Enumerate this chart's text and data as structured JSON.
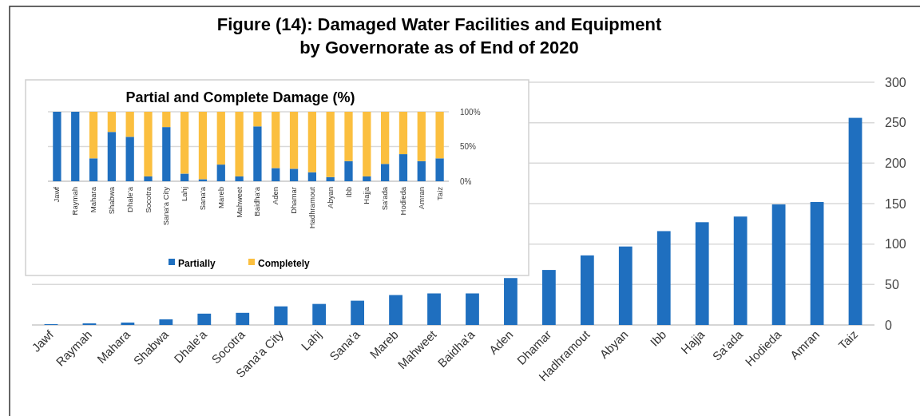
{
  "chart_data": [
    {
      "type": "bar",
      "title": "Figure (14): Damaged Water Facilities and Equipment\nby Governorate as of End of 2020",
      "categories": [
        "Jawf",
        "Raymah",
        "Mahara",
        "Shabwa",
        "Dhale'a",
        "Socotra",
        "Sana'a City",
        "Lahj",
        "Sana'a",
        "Mareb",
        "Mahweet",
        "Baidha'a",
        "Aden",
        "Dhamar",
        "Hadhramout",
        "Abyan",
        "Ibb",
        "Hajja",
        "Sa'ada",
        "Hodieda",
        "Amran",
        "Taiz"
      ],
      "series": [
        {
          "color": "#1f6fbf",
          "values": [
            1,
            2,
            3,
            7,
            14,
            15,
            23,
            26,
            30,
            37,
            39,
            39,
            58,
            68,
            86,
            97,
            116,
            127,
            134,
            149,
            152,
            256
          ]
        }
      ],
      "ylim": [
        0,
        300
      ],
      "yticks": [
        0,
        50,
        100,
        150,
        200,
        250,
        300
      ],
      "grid": "y",
      "legend": false
    },
    {
      "type": "bar",
      "title": "Partial and Complete Damage (%)",
      "stacked": true,
      "categories": [
        "Jawf",
        "Raymah",
        "Mahara",
        "Shabwa",
        "Dhale'a",
        "Socotra",
        "Sana'a City",
        "Lahj",
        "Sana'a",
        "Mareb",
        "Mahweet",
        "Baidha'a",
        "Aden",
        "Dhamar",
        "Hadhramout",
        "Abyan",
        "Ibb",
        "Hajja",
        "Sa'ada",
        "Hodieda",
        "Amran",
        "Taiz"
      ],
      "series": [
        {
          "name": "Partially",
          "color": "#1f6fbf",
          "values": [
            100,
            100,
            33,
            71,
            64,
            7,
            78,
            11,
            3,
            24,
            7,
            79,
            19,
            18,
            13,
            6,
            29,
            7,
            25,
            39,
            29,
            33
          ]
        },
        {
          "name": "Completely",
          "color": "#fbbf3f",
          "values": [
            0,
            0,
            67,
            29,
            36,
            93,
            22,
            89,
            97,
            76,
            93,
            21,
            81,
            82,
            87,
            94,
            71,
            93,
            75,
            61,
            71,
            67
          ]
        }
      ],
      "ylim": [
        0,
        100
      ],
      "yticks": [
        {
          "value": 0,
          "label": "0%"
        },
        {
          "value": 50,
          "label": "50%"
        },
        {
          "value": 100,
          "label": "100%"
        }
      ],
      "grid": "y",
      "legend": "bottom"
    }
  ]
}
